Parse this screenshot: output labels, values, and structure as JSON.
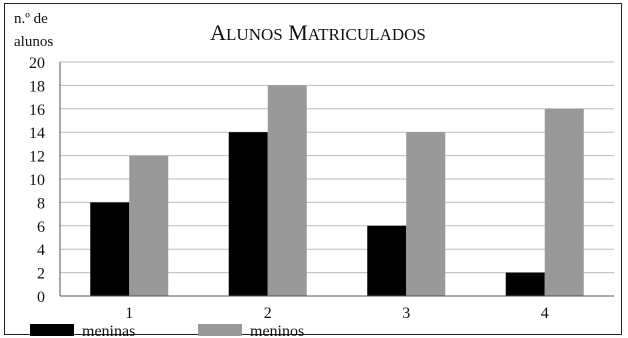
{
  "chart_data": {
    "type": "bar",
    "title": "Alunos Matriculados",
    "ylabel_line1": "n.º de",
    "ylabel_line2": "alunos",
    "xlabel": "",
    "categories": [
      "1",
      "2",
      "3",
      "4"
    ],
    "series": [
      {
        "name": "meninas",
        "values": [
          8,
          14,
          6,
          2
        ],
        "color": "#000000"
      },
      {
        "name": "meninos",
        "values": [
          12,
          18,
          14,
          16
        ],
        "color": "#999999"
      }
    ],
    "ylim": [
      0,
      20
    ],
    "yticks": [
      0,
      2,
      4,
      6,
      8,
      10,
      12,
      14,
      16,
      18,
      20
    ],
    "grid": true,
    "legend_position": "bottom-left"
  }
}
